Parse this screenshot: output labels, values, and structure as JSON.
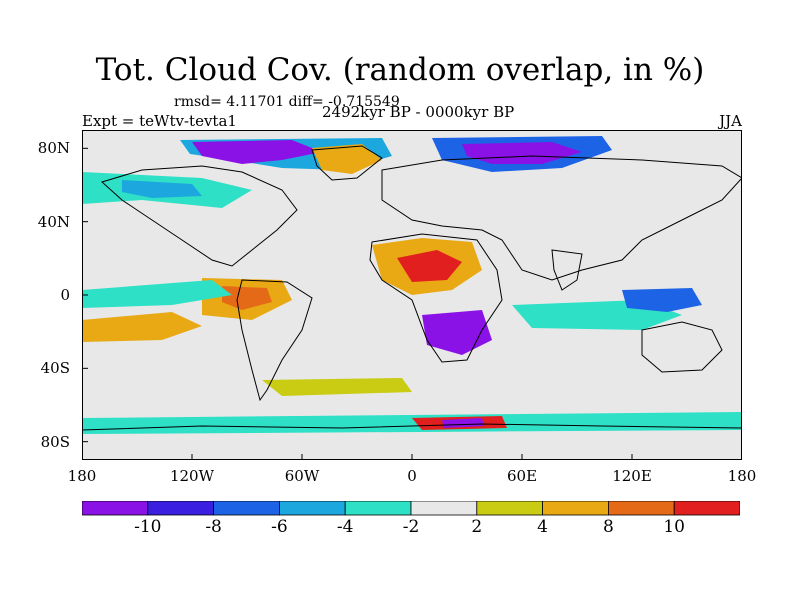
{
  "title": "Tot. Cloud Cov. (random overlap, in %)",
  "stats": "rmsd= 4.11701 diff= -0.715549",
  "experiment": "Expt = teWtv-tevta1",
  "period": "2492kyr BP - 0000kyr BP",
  "season": "JJA",
  "lat_labels": [
    "80N",
    "40N",
    "0",
    "40S",
    "80S"
  ],
  "lat_values": [
    80,
    40,
    0,
    -40,
    -80
  ],
  "lon_labels": [
    "180",
    "120W",
    "60W",
    "0",
    "60E",
    "120E",
    "180"
  ],
  "lon_values": [
    -180,
    -120,
    -60,
    0,
    60,
    120,
    180
  ],
  "colorbar": {
    "labels": [
      "-10",
      "-8",
      "-6",
      "-4",
      "-2",
      "2",
      "4",
      "8",
      "10"
    ],
    "colors": [
      "#8a12e6",
      "#3a1fe0",
      "#1d63e6",
      "#1ca8de",
      "#2ee0c6",
      "#e8e8e8",
      "#c9cc12",
      "#e8a914",
      "#e56a18",
      "#e21f1f"
    ]
  },
  "colors": {
    "background": "#e8e8e8",
    "coastline": "#000000"
  }
}
